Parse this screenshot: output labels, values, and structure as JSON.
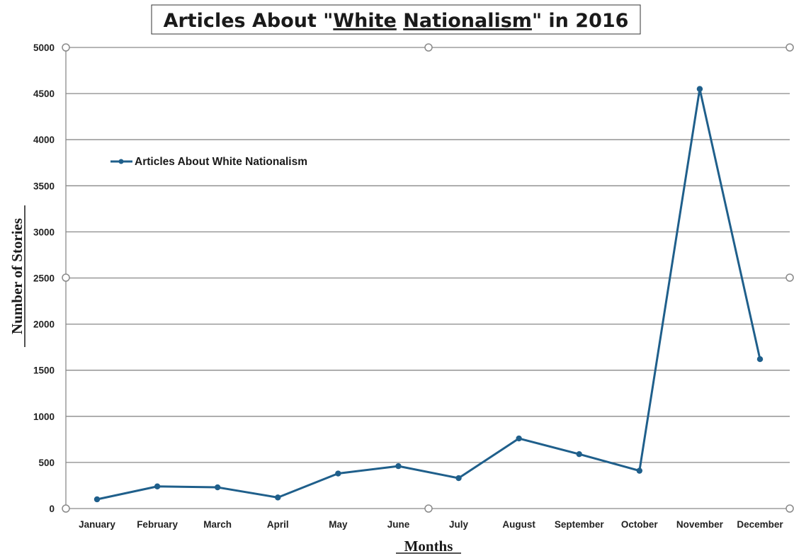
{
  "chart_data": {
    "type": "line",
    "title": "Articles About \"White Nationalism\" in 2016",
    "xlabel": "Months",
    "ylabel": "Number of Stories",
    "ylim": [
      0,
      5000
    ],
    "yticks": [
      0,
      500,
      1000,
      1500,
      2000,
      2500,
      3000,
      3500,
      4000,
      4500,
      5000
    ],
    "grid": true,
    "legend_position": "top-left",
    "categories": [
      "January",
      "February",
      "March",
      "April",
      "May",
      "June",
      "July",
      "August",
      "September",
      "October",
      "November",
      "December"
    ],
    "series": [
      {
        "name": "Articles About White Nationalism",
        "color": "#1f5f8b",
        "values": [
          100,
          240,
          230,
          120,
          380,
          460,
          330,
          760,
          590,
          410,
          4550,
          1620
        ]
      }
    ]
  }
}
